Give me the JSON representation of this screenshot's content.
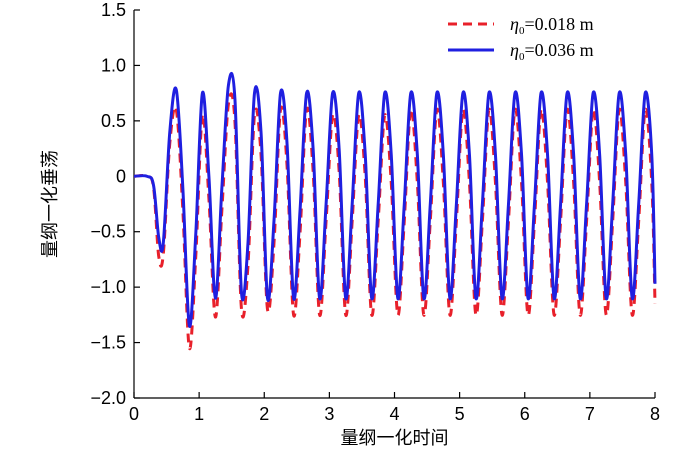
{
  "chart_data": {
    "type": "line",
    "xlabel": "量纲一化时间",
    "ylabel": "量纲一化垂荡",
    "xlim": [
      0,
      8
    ],
    "ylim": [
      -2.0,
      1.5
    ],
    "x_ticks": [
      "0",
      "1",
      "2",
      "3",
      "4",
      "5",
      "6",
      "7",
      "8"
    ],
    "y_ticks": [
      "1.5",
      "1.0",
      "0.5",
      "0",
      "−0.5",
      "−1.0",
      "−1.5",
      "−2.0"
    ],
    "grid": false,
    "legend_position": "top-right",
    "series": [
      {
        "name": "η₀=0.018 m",
        "legend_symbol": "η",
        "legend_subscript": "0",
        "legend_rest": "=0.018 m",
        "color": "#e8202a",
        "style": "dashed",
        "x": [
          0,
          0.2,
          0.3,
          0.38,
          0.45,
          0.55,
          0.65,
          0.75,
          0.85,
          0.95,
          1.05,
          1.15,
          1.25,
          1.35,
          1.45,
          1.55,
          1.65,
          1.75,
          1.85,
          1.95,
          2.05,
          2.15,
          2.25,
          2.35,
          2.45,
          2.55,
          2.65,
          2.75,
          2.85,
          2.95,
          3.05,
          3.15,
          3.25,
          3.35,
          3.45,
          3.55,
          3.65,
          3.75,
          3.85,
          3.95,
          4.05,
          4.15,
          4.25,
          4.35,
          4.45,
          4.55,
          4.65,
          4.75,
          4.85,
          4.95,
          5.05,
          5.15,
          5.25,
          5.35,
          5.45,
          5.55,
          5.65,
          5.75,
          5.85,
          5.95,
          6.05,
          6.15,
          6.25,
          6.35,
          6.45,
          6.55,
          6.65,
          6.75,
          6.85,
          6.95,
          7.05,
          7.15,
          7.25,
          7.35,
          7.45,
          7.55,
          7.65,
          7.75,
          7.85,
          7.95,
          8.0
        ],
        "values": [
          0,
          0,
          -0.1,
          -0.72,
          -0.7,
          0.3,
          0.6,
          -0.3,
          -1.55,
          -0.7,
          0.55,
          -0.2,
          -1.27,
          -0.3,
          0.65,
          0.5,
          -1.2,
          -0.8,
          0.55,
          0.2,
          -1.2,
          -0.6,
          0.6,
          0.1,
          -1.25,
          -0.5,
          0.6,
          0.05,
          -1.25,
          -0.4,
          0.55,
          0.05,
          -1.25,
          -0.4,
          0.55,
          0.0,
          -1.25,
          -0.4,
          0.55,
          -0.05,
          -1.25,
          -0.4,
          0.6,
          -0.05,
          -1.25,
          -0.4,
          0.6,
          -0.05,
          -1.25,
          -0.4,
          0.6,
          -0.05,
          -1.25,
          -0.4,
          0.6,
          -0.05,
          -1.25,
          -0.4,
          0.6,
          -0.05,
          -1.25,
          -0.4,
          0.6,
          -0.05,
          -1.25,
          -0.4,
          0.6,
          -0.05,
          -1.25,
          -0.4,
          0.6,
          -0.05,
          -1.25,
          -0.4,
          0.6,
          -0.05,
          -1.25,
          -0.4,
          0.6,
          -0.05,
          -1.15
        ]
      },
      {
        "name": "η₀=0.036 m",
        "legend_symbol": "η",
        "legend_subscript": "0",
        "legend_rest": "=0.036 m",
        "color": "#1f1fe0",
        "style": "solid",
        "x": [
          0,
          0.2,
          0.3,
          0.38,
          0.45,
          0.55,
          0.65,
          0.75,
          0.85,
          0.95,
          1.05,
          1.15,
          1.25,
          1.35,
          1.45,
          1.55,
          1.65,
          1.75,
          1.85,
          1.95,
          2.05,
          2.15,
          2.25,
          2.35,
          2.45,
          2.55,
          2.65,
          2.75,
          2.85,
          2.95,
          3.05,
          3.15,
          3.25,
          3.35,
          3.45,
          3.55,
          3.65,
          3.75,
          3.85,
          3.95,
          4.05,
          4.15,
          4.25,
          4.35,
          4.45,
          4.55,
          4.65,
          4.75,
          4.85,
          4.95,
          5.05,
          5.15,
          5.25,
          5.35,
          5.45,
          5.55,
          5.65,
          5.75,
          5.85,
          5.95,
          6.05,
          6.15,
          6.25,
          6.35,
          6.45,
          6.55,
          6.65,
          6.75,
          6.85,
          6.95,
          7.05,
          7.15,
          7.25,
          7.35,
          7.45,
          7.55,
          7.65,
          7.75,
          7.85,
          7.95,
          8.0
        ],
        "values": [
          0,
          0,
          -0.08,
          -0.55,
          -0.6,
          0.4,
          0.78,
          -0.1,
          -1.35,
          -0.5,
          0.75,
          0.0,
          -1.1,
          -0.1,
          0.82,
          0.7,
          -1.05,
          -0.6,
          0.75,
          0.4,
          -1.1,
          -0.4,
          0.75,
          0.3,
          -1.1,
          -0.3,
          0.75,
          0.25,
          -1.1,
          -0.25,
          0.75,
          0.25,
          -1.1,
          -0.25,
          0.75,
          0.2,
          -1.1,
          -0.25,
          0.75,
          0.2,
          -1.1,
          -0.25,
          0.75,
          0.2,
          -1.1,
          -0.25,
          0.75,
          0.2,
          -1.1,
          -0.25,
          0.75,
          0.2,
          -1.1,
          -0.25,
          0.75,
          0.2,
          -1.1,
          -0.25,
          0.75,
          0.2,
          -1.1,
          -0.25,
          0.75,
          0.2,
          -1.1,
          -0.25,
          0.75,
          0.2,
          -1.1,
          -0.25,
          0.75,
          0.2,
          -1.1,
          -0.25,
          0.75,
          0.2,
          -1.1,
          -0.25,
          0.75,
          0.2,
          -0.97
        ]
      }
    ]
  }
}
